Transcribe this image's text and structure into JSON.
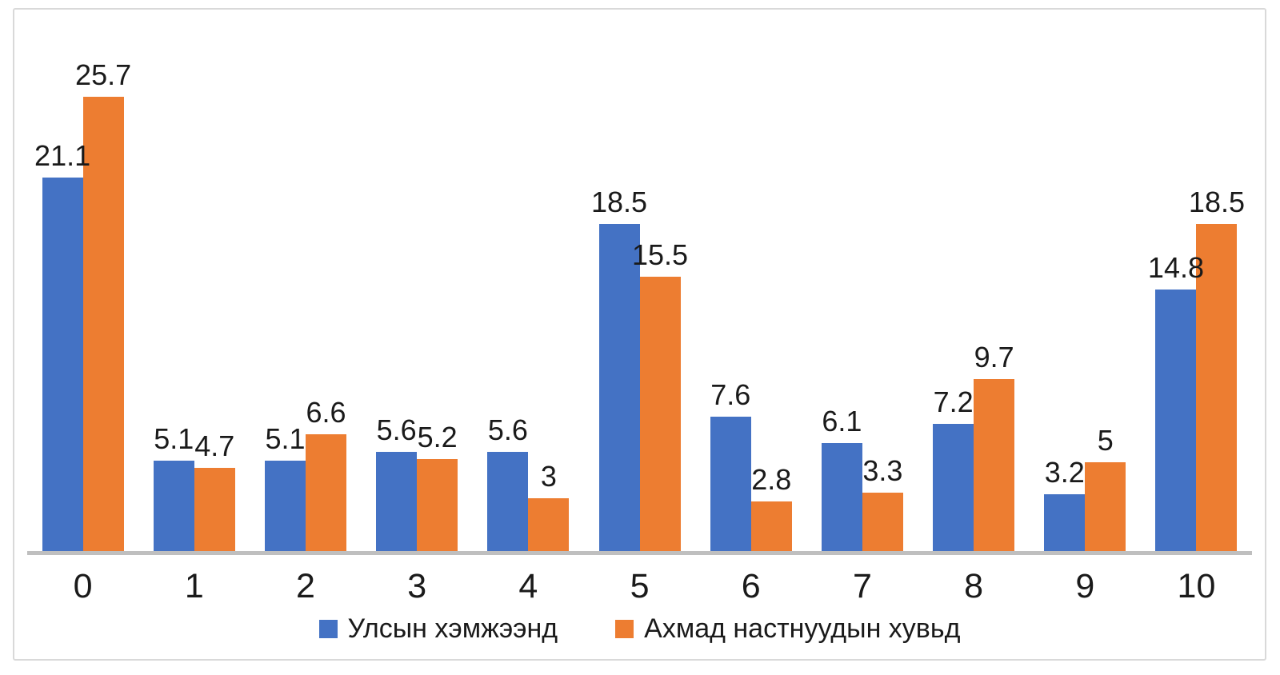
{
  "chart_data": {
    "type": "bar",
    "categories": [
      "0",
      "1",
      "2",
      "3",
      "4",
      "5",
      "6",
      "7",
      "8",
      "9",
      "10"
    ],
    "series": [
      {
        "name": "Улсын хэмжээнд",
        "color": "#4472C4",
        "values": [
          21.1,
          5.1,
          5.1,
          5.6,
          5.6,
          18.5,
          7.6,
          6.1,
          7.2,
          3.2,
          14.8
        ]
      },
      {
        "name": "Ахмад настнуудын хувьд",
        "color": "#ED7D31",
        "values": [
          25.7,
          4.7,
          6.6,
          5.2,
          3,
          15.5,
          2.8,
          3.3,
          9.7,
          5,
          18.5
        ]
      }
    ],
    "title": "",
    "xlabel": "",
    "ylabel": "",
    "ylim": [
      0,
      26
    ],
    "grid": false,
    "data_labels": true,
    "legend_position": "bottom",
    "axis_line_color": "#BFBFBF",
    "frame_border_color": "#D9D9D9"
  }
}
